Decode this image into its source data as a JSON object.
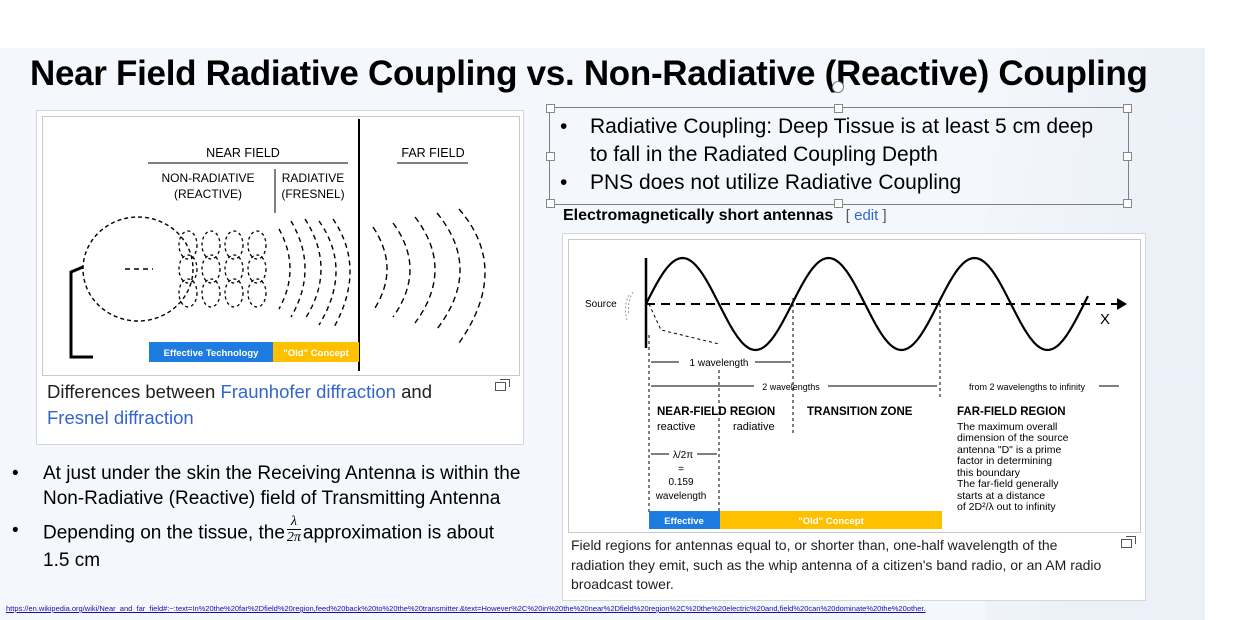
{
  "title": "Near Field Radiative Coupling vs. Non-Radiative (Reactive) Coupling",
  "figure1": {
    "near_field": "NEAR FIELD",
    "far_field": "FAR FIELD",
    "non_radiative_1": "NON-RADIATIVE",
    "non_radiative_2": "(REACTIVE)",
    "radiative_1": "RADIATIVE",
    "radiative_2": "(FRESNEL)",
    "effective_label": "Effective Technology",
    "old_label": "\"Old\" Concept",
    "caption_prefix": "Differences between ",
    "caption_link1": "Fraunhofer diffraction",
    "caption_mid": " and",
    "caption_link2": "Fresnel diffraction",
    "colors": {
      "effective": "#1e7be0",
      "old": "#ffc000"
    }
  },
  "textbox": {
    "bullet1_line1": "Radiative Coupling: Deep Tissue is at least 5 cm deep",
    "bullet1_line2": "to fall in the Radiated Coupling Depth",
    "bullet2": "PNS does not utilize Radiative Coupling"
  },
  "wiki": {
    "heading": "Electromagnetically short antennas",
    "edit_open": "[",
    "edit": "edit",
    "edit_close": "]"
  },
  "figure2": {
    "source": "Source",
    "x_label": "X",
    "one_wavelength": "1 wavelength",
    "two_wavelengths": "2 wavelengths",
    "from_two": "from 2 wavelengths to infinity",
    "near_region": "NEAR-FIELD REGION",
    "reactive": "reactive",
    "radiative": "radiative",
    "transition": "TRANSITION ZONE",
    "far_region": "FAR-FIELD REGION",
    "far_desc": [
      "The maximum overall",
      "dimension of the source",
      "antenna \"D\" is a prime",
      "factor in determining",
      "this boundary",
      "The far-field generally",
      "starts at a distance",
      "of 2D²/λ out to infinity"
    ],
    "lambda_2pi": "λ/2π",
    "equals": "=",
    "value": "0.159",
    "wavelength": "wavelength",
    "effective": "Effective",
    "old": "\"Old\" Concept",
    "caption": [
      "Field regions for antennas equal to, or shorter than, one-half wavelength of the",
      "radiation they emit, such as the whip antenna of a citizen's band radio, or an AM radio",
      "broadcast tower."
    ]
  },
  "bullets": {
    "b1_line1": "At just under the skin the Receiving Antenna is within the",
    "b1_line2": "Non-Radiative (Reactive) field of Transmitting  Antenna",
    "b2_prefix": "Depending on the tissue, the",
    "b2_frac_num": "λ",
    "b2_frac_den": "2π",
    "b2_suffix": "approximation is about",
    "b2_line2": "1.5 cm"
  },
  "url": "https://en.wikipedia.org/wiki/Near_and_far_field#:~:text=In%20the%20far%2Dfield%20region,feed%20back%20to%20the%20transmitter.&text=However%2C%20in%20the%20near%2Dfield%20region%2C%20the%20electric%20and,field%20can%20dominate%20the%20other."
}
